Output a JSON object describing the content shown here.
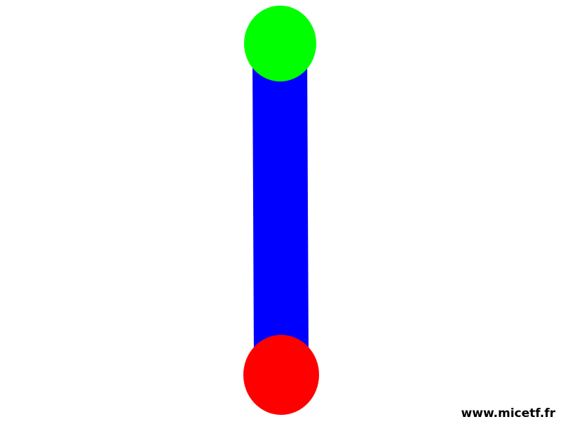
{
  "watermark": "www.micetf.fr",
  "colors": {
    "background": "#ffffff",
    "bar": "#0000ff",
    "top_circle": "#00ff00",
    "bottom_circle": "#ff0000",
    "watermark": "#000000"
  }
}
